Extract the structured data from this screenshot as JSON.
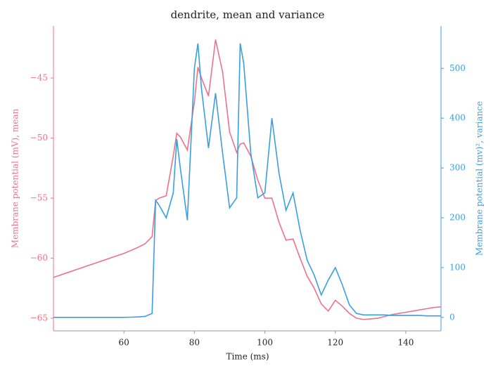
{
  "chart_data": {
    "type": "line",
    "title": "dendrite, mean and variance",
    "x_label": "Time (ms)",
    "y_label": "Membrane potential (mV), mean",
    "y2_label": "Membrane potential (mv)², variance",
    "x": [
      40,
      42,
      44,
      46,
      48,
      50,
      52,
      54,
      56,
      58,
      60,
      62,
      64,
      66,
      68,
      69,
      70,
      72,
      74,
      75,
      76,
      78,
      80,
      81,
      82,
      84,
      86,
      88,
      90,
      92,
      93,
      94,
      96,
      98,
      100,
      102,
      104,
      106,
      108,
      110,
      112,
      114,
      116,
      118,
      120,
      122,
      124,
      126,
      128,
      130,
      132,
      134,
      136,
      138,
      140,
      142,
      144,
      146,
      148,
      150
    ],
    "series": [
      {
        "name": "mean",
        "color": "#f07189",
        "axis": "y",
        "values": [
          -61.6,
          -61.4,
          -61.2,
          -61.0,
          -60.8,
          -60.6,
          -60.4,
          -60.2,
          -60.0,
          -59.8,
          -59.6,
          -59.35,
          -59.1,
          -58.8,
          -58.2,
          -55.2,
          -55,
          -54.8,
          -51.5,
          -49.6,
          -49.9,
          -51,
          -47,
          -44.1,
          -45,
          -46.5,
          -41.8,
          -44.5,
          -49.5,
          -51.2,
          -50.5,
          -50.4,
          -51.5,
          -53.5,
          -55,
          -55,
          -57,
          -58.5,
          -58.4,
          -60,
          -61.5,
          -62.5,
          -63.8,
          -64.4,
          -63.5,
          -64,
          -64.6,
          -65,
          -65.1,
          -65.05,
          -65,
          -64.85,
          -64.7,
          -64.6,
          -64.5,
          -64.4,
          -64.3,
          -64.2,
          -64.1,
          -64.05
        ]
      },
      {
        "name": "variance",
        "color": "#3a9fe0",
        "axis": "y2",
        "values": [
          0,
          0,
          0,
          0,
          0,
          0,
          0,
          0,
          0,
          0,
          0,
          0.5,
          1,
          2,
          8,
          235,
          225,
          200,
          250,
          358,
          300,
          195,
          500,
          550,
          460,
          340,
          450,
          330,
          220,
          240,
          550,
          510,
          330,
          240,
          250,
          400,
          290,
          215,
          250,
          175,
          115,
          85,
          45,
          75,
          100,
          65,
          25,
          8,
          5,
          5,
          5,
          5,
          4,
          4,
          4,
          4,
          4,
          3,
          3,
          3
        ]
      }
    ],
    "xlim": [
      40,
      150
    ],
    "xticks": [
      60,
      80,
      100,
      120,
      140
    ],
    "ylim": [
      -66.05,
      -40.67
    ],
    "yticks": [
      {
        "value": -65,
        "label": "−65"
      },
      {
        "value": -60,
        "label": "−60"
      },
      {
        "value": -55,
        "label": "−55"
      },
      {
        "value": -50,
        "label": "−50"
      },
      {
        "value": -45,
        "label": "−45"
      }
    ],
    "y2lim": [
      -27,
      585
    ],
    "y2ticks": [
      0,
      100,
      200,
      300,
      400,
      500
    ]
  }
}
